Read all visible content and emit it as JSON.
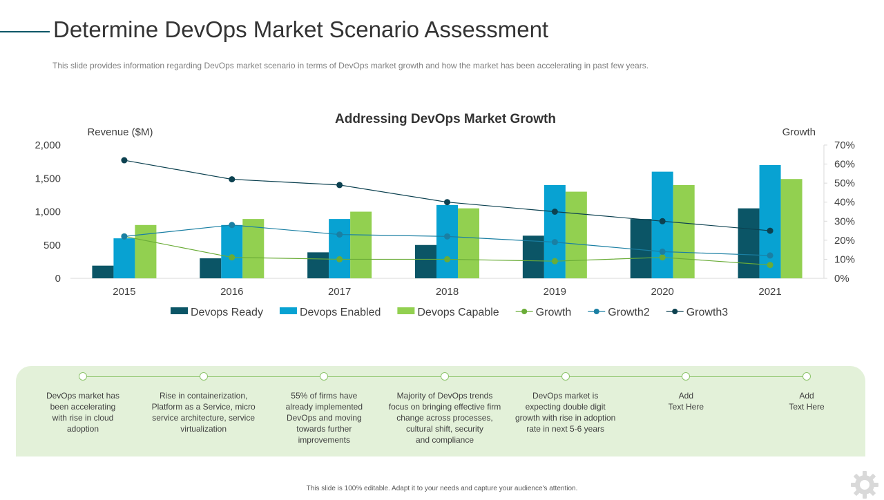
{
  "page": {
    "title": "Determine DevOps Market Scenario Assessment",
    "subtitle": "This slide provides  information  regarding  DevOps  market  scenario  in  terms  of  DevOps  market  growth  and  how  the  market  has  been  accelerating  in  past  few  years.",
    "footer": "This slide is 100% editable. Adapt it to your needs and capture your audience's attention."
  },
  "chart_data": {
    "type": "bar",
    "title": "Addressing DevOps Market Growth",
    "ylabel": "Revenue ($M)",
    "y2label": "Growth",
    "categories": [
      "2015",
      "2016",
      "2017",
      "2018",
      "2019",
      "2020",
      "2021"
    ],
    "ylim": [
      0,
      2000
    ],
    "yticks": [
      0,
      500,
      1000,
      1500,
      2000
    ],
    "ytick_labels": [
      "0",
      "500",
      "1,000",
      "1,500",
      "2,000"
    ],
    "y2lim": [
      0,
      70
    ],
    "y2ticks": [
      0,
      10,
      20,
      30,
      40,
      50,
      60,
      70
    ],
    "y2tick_labels": [
      "0%",
      "10%",
      "20%",
      "30%",
      "40%",
      "50%",
      "60%",
      "70%"
    ],
    "series": [
      {
        "name": "Devops Ready",
        "kind": "bar",
        "color": "#0b5566",
        "values": [
          190,
          300,
          390,
          500,
          640,
          890,
          1050
        ]
      },
      {
        "name": "Devops Enabled",
        "kind": "bar",
        "color": "#08a2d2",
        "values": [
          600,
          800,
          890,
          1100,
          1400,
          1600,
          1700
        ]
      },
      {
        "name": "Devops Capable",
        "kind": "bar",
        "color": "#92d050",
        "values": [
          800,
          890,
          1000,
          1050,
          1300,
          1400,
          1490
        ]
      },
      {
        "name": "Growth",
        "kind": "line",
        "axis": "secondary",
        "color": "#6aac37",
        "values": [
          22,
          11,
          10,
          10,
          9,
          11,
          7
        ]
      },
      {
        "name": "Growth2",
        "kind": "line",
        "axis": "secondary",
        "color": "#1a7fa3",
        "values": [
          22,
          28,
          23,
          22,
          19,
          14,
          12
        ]
      },
      {
        "name": "Growth3",
        "kind": "line",
        "axis": "secondary",
        "color": "#0c4150",
        "values": [
          62,
          52,
          49,
          40,
          35,
          30,
          25
        ]
      }
    ],
    "legend_position": "bottom"
  },
  "timeline": {
    "items": [
      "DevOps  market has\nbeen accelerating\nwith rise in cloud\nadoption",
      "Rise in containerization,\nPlatform as a Service, micro\nservice architecture, service\nvirtualization",
      "55% of firms have\nalready implemented\nDevOps  and moving\ntowards further\nimprovements",
      "Majority of DevOps  trends\nfocus on bringing effective  firm\nchange across processes,\ncultural shift, security\nand compliance",
      "DevOps  market is\nexpecting double  digit\ngrowth with rise in adoption\nrate in next 5-6 years",
      "Add\nText Here",
      "Add\nText Here"
    ]
  },
  "icons": {
    "settings": "gear-icon"
  }
}
